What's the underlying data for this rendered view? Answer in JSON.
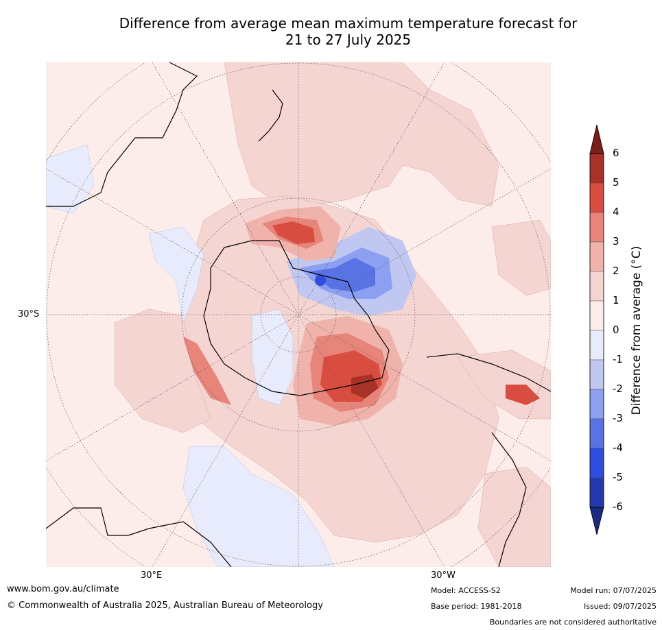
{
  "title": {
    "line1": "Difference from average mean maximum temperature forecast for",
    "line2": "21 to 27 July 2025"
  },
  "axis_labels": {
    "lat_30s": "30°S",
    "lon_30e": "30°E",
    "lon_30w": "30°W"
  },
  "colorbar": {
    "title": "Difference from average (°C)",
    "ticks": [
      "6",
      "5",
      "4",
      "3",
      "2",
      "1",
      "0",
      "-1",
      "-2",
      "-3",
      "-4",
      "-5",
      "-6"
    ],
    "colors": [
      "#7a1f1a",
      "#a83228",
      "#d94c40",
      "#e8857b",
      "#f0b3ac",
      "#f5d5d2",
      "#fcecea",
      "#e8ebfb",
      "#c0c8f2",
      "#8d9ff0",
      "#5a73e4",
      "#2f4de0",
      "#2439b0",
      "#1a2a80"
    ]
  },
  "footer": {
    "website": "www.bom.gov.au/climate",
    "copyright": "© Commonwealth of Australia 2025, Australian Bureau of Meteorology",
    "model": "Model: ACCESS-S2",
    "base_period": "Base period: 1981-2018",
    "model_run": "Model run: 07/07/2025",
    "issued": "Issued: 09/07/2025",
    "disclaimer": "Boundaries are not considered authoritative"
  }
}
